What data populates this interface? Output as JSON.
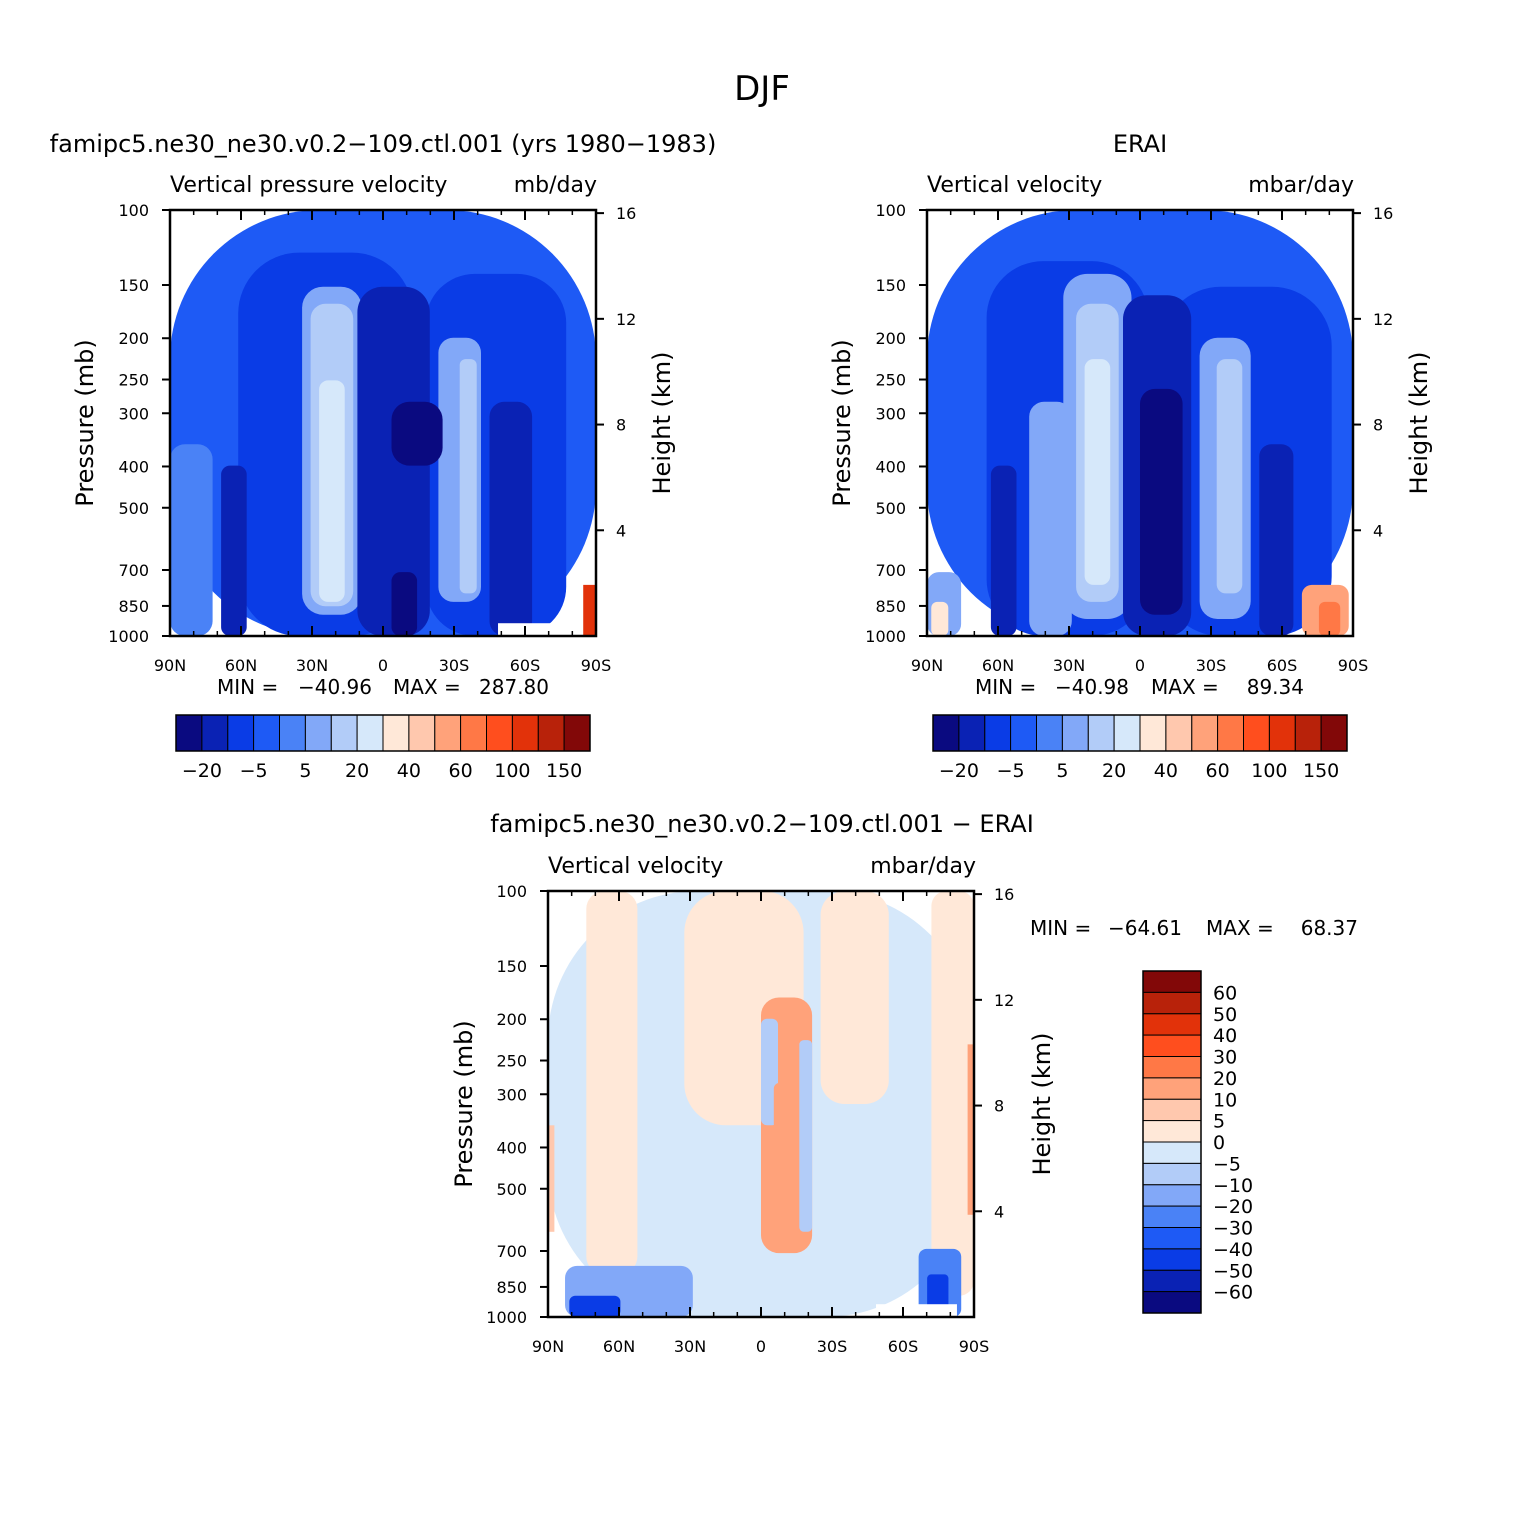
{
  "figure": {
    "title": "DJF"
  },
  "chart_data": [
    {
      "type": "heatmap",
      "title": "famipc5.ne30_ne30.v0.2−109.ctl.001 (yrs 1980−1983)",
      "subtitle_left": "Vertical pressure velocity",
      "subtitle_right": "mb/day",
      "xlabel": "",
      "ylabel": "Pressure (mb)",
      "y2label": "Height (km)",
      "x_ticks": [
        "90N",
        "60N",
        "30N",
        "0",
        "30S",
        "60S",
        "90S"
      ],
      "y_ticks": [
        "100",
        "150",
        "200",
        "250",
        "300",
        "400",
        "500",
        "700",
        "850",
        "1000"
      ],
      "y2_ticks": [
        "16",
        "12",
        "8",
        "4"
      ],
      "y_scale": "log",
      "ylim": [
        1000,
        100
      ],
      "xlim": [
        90,
        -90
      ],
      "stats": {
        "min_label": "MIN =",
        "min": "−40.96",
        "max_label": "MAX =",
        "max": "287.80"
      },
      "colorbar": {
        "orientation": "horizontal",
        "labels": [
          "−20",
          "−5",
          "5",
          "20",
          "40",
          "60",
          "100",
          "150"
        ]
      },
      "colors": [
        "#0a0a80",
        "#0a22b4",
        "#0a3ce6",
        "#1e5af5",
        "#4a82f6",
        "#82a8f8",
        "#b2ccf8",
        "#d6e8fa",
        "#ffe8d8",
        "#ffc8ae",
        "#ffa27a",
        "#ff7846",
        "#ff4e1e",
        "#e2320a",
        "#b8220a",
        "#820808"
      ]
    },
    {
      "type": "heatmap",
      "title": "ERAI",
      "subtitle_left": "Vertical velocity",
      "subtitle_right": "mbar/day",
      "xlabel": "",
      "ylabel": "Pressure (mb)",
      "y2label": "Height (km)",
      "x_ticks": [
        "90N",
        "60N",
        "30N",
        "0",
        "30S",
        "60S",
        "90S"
      ],
      "y_ticks": [
        "100",
        "150",
        "200",
        "250",
        "300",
        "400",
        "500",
        "700",
        "850",
        "1000"
      ],
      "y2_ticks": [
        "16",
        "12",
        "8",
        "4"
      ],
      "y_scale": "log",
      "ylim": [
        1000,
        100
      ],
      "xlim": [
        90,
        -90
      ],
      "stats": {
        "min_label": "MIN =",
        "min": "−40.98",
        "max_label": "MAX =",
        "max": "89.34"
      },
      "colorbar": {
        "orientation": "horizontal",
        "labels": [
          "−20",
          "−5",
          "5",
          "20",
          "40",
          "60",
          "100",
          "150"
        ]
      },
      "colors": [
        "#0a0a80",
        "#0a22b4",
        "#0a3ce6",
        "#1e5af5",
        "#4a82f6",
        "#82a8f8",
        "#b2ccf8",
        "#d6e8fa",
        "#ffe8d8",
        "#ffc8ae",
        "#ffa27a",
        "#ff7846",
        "#ff4e1e",
        "#e2320a",
        "#b8220a",
        "#820808"
      ]
    },
    {
      "type": "heatmap",
      "title": "famipc5.ne30_ne30.v0.2−109.ctl.001 − ERAI",
      "subtitle_left": "Vertical velocity",
      "subtitle_right": "mbar/day",
      "xlabel": "",
      "ylabel": "Pressure (mb)",
      "y2label": "Height (km)",
      "x_ticks": [
        "90N",
        "60N",
        "30N",
        "0",
        "30S",
        "60S",
        "90S"
      ],
      "y_ticks": [
        "100",
        "150",
        "200",
        "250",
        "300",
        "400",
        "500",
        "700",
        "850",
        "1000"
      ],
      "y2_ticks": [
        "16",
        "12",
        "8",
        "4"
      ],
      "y_scale": "log",
      "ylim": [
        1000,
        100
      ],
      "xlim": [
        90,
        -90
      ],
      "stats": {
        "min_label": "MIN =",
        "min": "−64.61",
        "max_label": "MAX =",
        "max": "68.37"
      },
      "colorbar": {
        "orientation": "vertical",
        "labels": [
          "60",
          "50",
          "40",
          "30",
          "20",
          "10",
          "5",
          "0",
          "−5",
          "−10",
          "−20",
          "−30",
          "−40",
          "−50",
          "−60"
        ]
      },
      "colors": [
        "#820808",
        "#b8220a",
        "#e2320a",
        "#ff4e1e",
        "#ff7846",
        "#ffa27a",
        "#ffc8ae",
        "#ffe8d8",
        "#d6e8fa",
        "#b2ccf8",
        "#82a8f8",
        "#4a82f6",
        "#1e5af5",
        "#0a3ce6",
        "#0a22b4",
        "#0a0a80"
      ]
    }
  ]
}
